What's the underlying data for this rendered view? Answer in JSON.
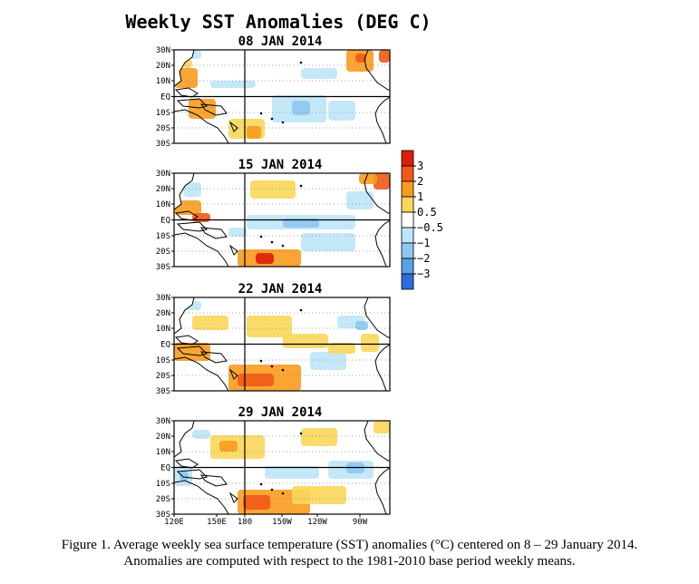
{
  "main_title": "Weekly SST Anomalies (DEG C)",
  "panels": [
    {
      "date": "08 JAN 2014"
    },
    {
      "date": "15 JAN 2014"
    },
    {
      "date": "22 JAN 2014"
    },
    {
      "date": "29 JAN 2014"
    }
  ],
  "lat_labels": [
    "30N",
    "20N",
    "10N",
    "EQ",
    "10S",
    "20S",
    "30S"
  ],
  "lon_labels": [
    "120E",
    "150E",
    "180",
    "150W",
    "120W",
    "90W"
  ],
  "colorbar": {
    "bins": [
      {
        "color": "#dc1e0a",
        "label": "3"
      },
      {
        "color": "#f05a14",
        "label": "2"
      },
      {
        "color": "#fa9b1e",
        "label": "1"
      },
      {
        "color": "#fad75a",
        "label": "0.5"
      },
      {
        "color": "#ffffff",
        "label": "−0.5"
      },
      {
        "color": "#bfe6f8",
        "label": "−1"
      },
      {
        "color": "#8cc8f0",
        "label": "−2"
      },
      {
        "color": "#5aa0e6",
        "label": "−3"
      },
      {
        "color": "#2d6ede",
        "label": ""
      }
    ]
  },
  "caption": {
    "line1": "Figure 1. Average weekly sea surface temperature (SST) anomalies (°C) centered on 8 – 29 January 2014.",
    "line2": "Anomalies are computed with respect to the 1981-2010 base period weekly means."
  },
  "chart_data": [
    {
      "type": "heatmap",
      "title": "08 JAN 2014",
      "x_range": [
        "120E",
        "80W"
      ],
      "y_range": [
        "30S",
        "30N"
      ],
      "units": "DEG C"
    },
    {
      "type": "heatmap",
      "title": "15 JAN 2014",
      "x_range": [
        "120E",
        "80W"
      ],
      "y_range": [
        "30S",
        "30N"
      ],
      "units": "DEG C"
    },
    {
      "type": "heatmap",
      "title": "22 JAN 2014",
      "x_range": [
        "120E",
        "80W"
      ],
      "y_range": [
        "30S",
        "30N"
      ],
      "units": "DEG C"
    },
    {
      "type": "heatmap",
      "title": "29 JAN 2014",
      "x_range": [
        "120E",
        "80W"
      ],
      "y_range": [
        "30S",
        "30N"
      ],
      "units": "DEG C"
    }
  ]
}
